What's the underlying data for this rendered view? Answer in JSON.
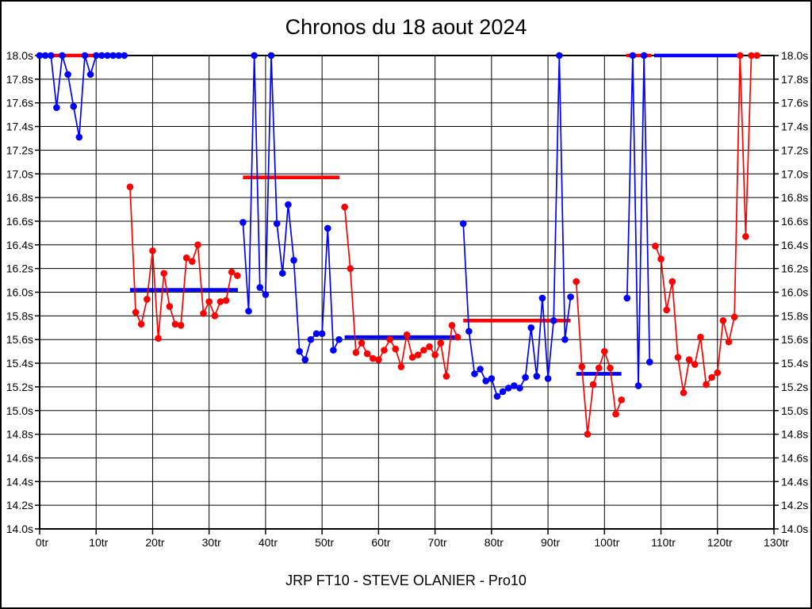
{
  "page": {
    "title": "Chronos du 18 aout 2024",
    "subtitle": "JRP FT10 - STEVE OLANIER - Pro10"
  },
  "chart_data": {
    "type": "line",
    "title": "Chronos du 18 aout 2024",
    "subtitle": "JRP FT10 - STEVE OLANIER - Pro10",
    "x_unit": "tr",
    "y_unit": "s",
    "xlim": [
      0,
      130
    ],
    "ylim": [
      14.0,
      18.0
    ],
    "clip_max": 18.0,
    "grid": true,
    "x_ticks": [
      0,
      10,
      20,
      30,
      40,
      50,
      60,
      70,
      80,
      90,
      100,
      110,
      120,
      130
    ],
    "x_tick_labels": [
      "0tr",
      "10tr",
      "20tr",
      "30tr",
      "40tr",
      "50tr",
      "60tr",
      "70tr",
      "80tr",
      "90tr",
      "100tr",
      "110tr",
      "120tr",
      "130tr"
    ],
    "y_ticks": [
      18.0,
      17.8,
      17.6,
      17.4,
      17.2,
      17.0,
      16.8,
      16.6,
      16.4,
      16.2,
      16.0,
      15.8,
      15.6,
      15.4,
      15.2,
      15.0,
      14.8,
      14.6,
      14.4,
      14.2,
      14.0
    ],
    "y_tick_labels": [
      "18.0s",
      "17.8s",
      "17.6s",
      "17.4s",
      "17.2s",
      "17.0s",
      "16.8s",
      "16.6s",
      "16.4s",
      "16.2s",
      "16.0s",
      "15.8s",
      "15.6s",
      "15.4s",
      "15.2s",
      "15.0s",
      "14.8s",
      "14.6s",
      "14.4s",
      "14.2s",
      "14.0s"
    ],
    "colors": {
      "blue": "#0000ff",
      "red": "#ff0000"
    },
    "runs": [
      {
        "color": "blue",
        "start_lap": 0,
        "times": [
          18.0,
          18.0,
          18.0,
          17.56,
          18.0,
          17.84,
          17.57,
          17.31,
          18.0,
          17.84,
          18.0,
          18.0,
          18.0,
          18.0,
          18.0,
          18.0
        ]
      },
      {
        "color": "red",
        "start_lap": 16,
        "times": [
          16.89,
          15.83,
          15.73,
          15.94,
          16.35,
          15.61,
          16.16,
          15.88,
          15.73,
          15.72,
          16.29,
          16.26,
          16.4,
          15.82,
          15.92,
          15.8,
          15.92,
          15.93,
          16.17,
          16.14
        ]
      },
      {
        "color": "blue",
        "start_lap": 36,
        "times": [
          16.59,
          15.84,
          18.0,
          16.04,
          15.98,
          18.0,
          16.58,
          16.16,
          16.74,
          16.27,
          15.5,
          15.43,
          15.6,
          15.65,
          15.65,
          16.54,
          15.51,
          15.6
        ]
      },
      {
        "color": "red",
        "start_lap": 54,
        "times": [
          16.72,
          16.2,
          15.49,
          15.57,
          15.48,
          15.44,
          15.43,
          15.51,
          15.6,
          15.52,
          15.37,
          15.64,
          15.45,
          15.47,
          15.51,
          15.54,
          15.47,
          15.57,
          15.29,
          15.72,
          15.62
        ]
      },
      {
        "color": "blue",
        "start_lap": 75,
        "times": [
          16.58,
          15.67,
          15.31,
          15.35,
          15.25,
          15.27,
          15.12,
          15.16,
          15.19,
          15.21,
          15.19,
          15.28,
          15.7,
          15.29,
          15.95,
          15.27,
          15.76,
          18.0,
          15.6,
          15.96
        ]
      },
      {
        "color": "red",
        "start_lap": 95,
        "times": [
          16.09,
          15.37,
          14.8,
          15.22,
          15.36,
          15.5,
          15.36,
          14.97,
          15.09
        ]
      },
      {
        "color": "blue",
        "start_lap": 104,
        "times": [
          15.95,
          18.0,
          15.21,
          18.0,
          15.41
        ]
      },
      {
        "color": "red",
        "start_lap": 109,
        "times": [
          16.39,
          16.28,
          15.85,
          16.09,
          15.45,
          15.15,
          15.43,
          15.39,
          15.62,
          15.22,
          15.28,
          15.32,
          15.76,
          15.58,
          15.79,
          18.0,
          16.47,
          18.0,
          18.0
        ]
      }
    ],
    "segments": [
      {
        "color": "red",
        "from_lap": 0,
        "to_lap": 15.5,
        "avg": 18.0
      },
      {
        "color": "blue",
        "from_lap": 16,
        "to_lap": 35.1,
        "avg": 16.02
      },
      {
        "color": "red",
        "from_lap": 36,
        "to_lap": 53.1,
        "avg": 16.97
      },
      {
        "color": "blue",
        "from_lap": 54,
        "to_lap": 74.4,
        "avg": 15.62
      },
      {
        "color": "red",
        "from_lap": 75,
        "to_lap": 94.0,
        "avg": 15.76
      },
      {
        "color": "blue",
        "from_lap": 95,
        "to_lap": 103.0,
        "avg": 15.31
      },
      {
        "color": "red",
        "from_lap": 103.9,
        "to_lap": 108.3,
        "avg": 18.0
      },
      {
        "color": "blue",
        "from_lap": 108.8,
        "to_lap": 124.3,
        "avg": 18.0
      }
    ]
  }
}
